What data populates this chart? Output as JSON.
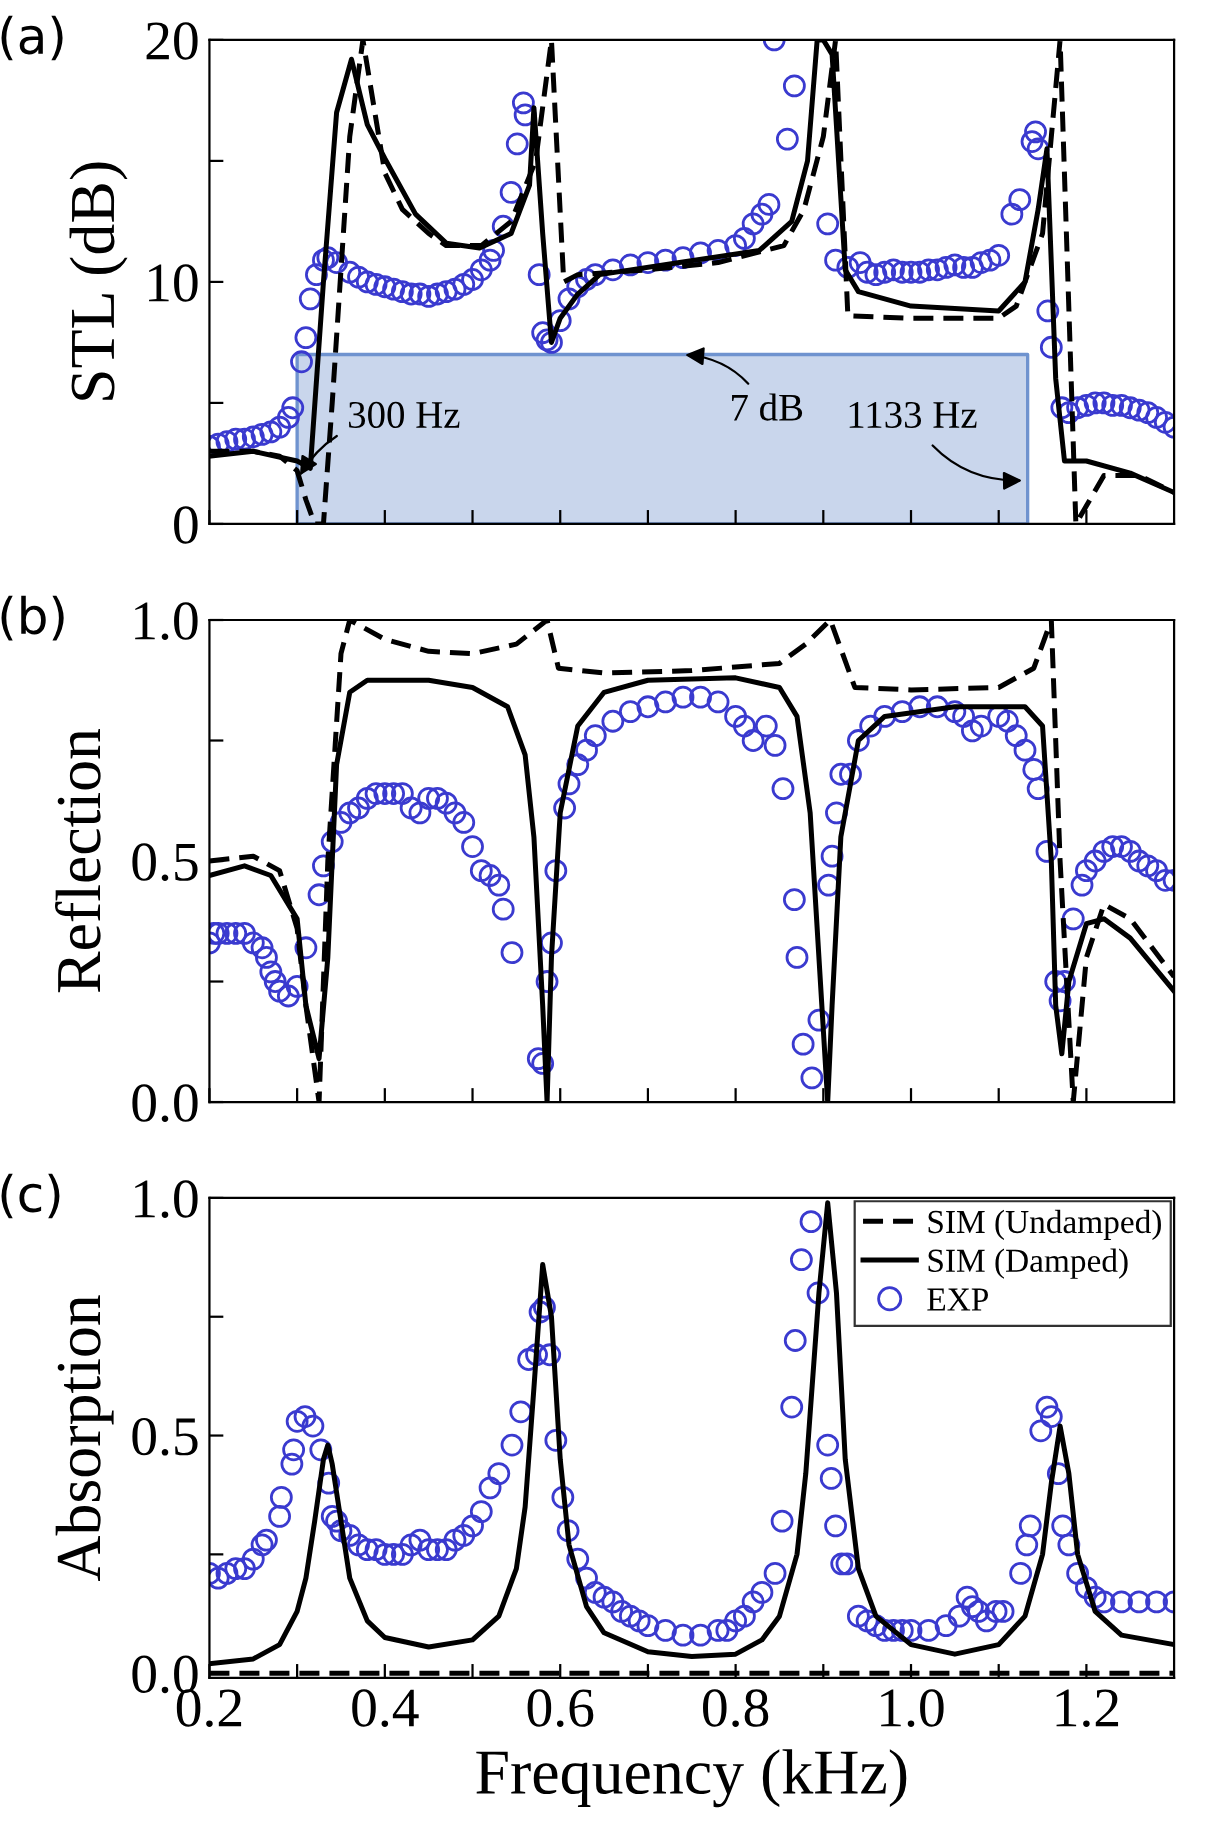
{
  "chart_data": [
    {
      "type": "line",
      "title": "(a)",
      "ylabel": "STL (dB)",
      "xlim": [
        0.2,
        1.3
      ],
      "ylim": [
        0,
        20
      ],
      "tick_labels": "y",
      "xticks": [
        0.2,
        {
          "value": 0.3,
          "label": null
        },
        0.4,
        {
          "value": 0.5,
          "label": null
        },
        0.6,
        {
          "value": 0.7,
          "label": null
        },
        0.8,
        {
          "value": 0.9,
          "label": null
        },
        1.0,
        {
          "value": 1.1,
          "label": null
        },
        1.2
      ],
      "yticks": [
        0,
        {
          "value": 5,
          "label": null
        },
        10,
        {
          "value": 15,
          "label": null
        },
        20
      ],
      "series": [
        {
          "type": "area",
          "color": "#c9d6ec",
          "x": [
            0.3,
            1.133
          ],
          "values": [
            7,
            7
          ]
        },
        {
          "type": "line",
          "color": "#000000",
          "line_style": "dashed",
          "x": [
            0.2,
            0.25,
            0.28,
            0.3,
            0.31,
            0.32,
            0.33,
            0.34,
            0.36,
            0.375,
            0.4,
            0.42,
            0.45,
            0.47,
            0.51,
            0.544,
            0.572,
            0.59,
            0.604,
            0.62,
            0.7,
            0.78,
            0.855,
            0.878,
            0.9,
            0.914,
            0.928,
            1.0,
            1.1,
            1.12,
            1.15,
            1.17,
            1.188,
            1.22,
            1.26,
            1.3
          ],
          "values": [
            3.0,
            3.0,
            2.8,
            2.2,
            1.0,
            0.0,
            0.0,
            5.0,
            16.0,
            20.0,
            14.5,
            13.0,
            12.0,
            11.5,
            11.5,
            12.5,
            15.0,
            20.0,
            10.0,
            10.3,
            10.5,
            10.8,
            11.5,
            13.0,
            16.0,
            20.0,
            8.6,
            8.5,
            8.5,
            9.0,
            12.0,
            20.0,
            0.0,
            2.0,
            2.0,
            1.3
          ]
        },
        {
          "type": "line",
          "color": "#000000",
          "line_style": "solid",
          "x": [
            0.2,
            0.25,
            0.3,
            0.315,
            0.33,
            0.345,
            0.362,
            0.38,
            0.4,
            0.435,
            0.47,
            0.508,
            0.544,
            0.565,
            0.57,
            0.58,
            0.59,
            0.6,
            0.62,
            0.645,
            0.736,
            0.827,
            0.864,
            0.882,
            0.893,
            0.9,
            0.91,
            0.925,
            0.94,
            1.0,
            1.1,
            1.13,
            1.145,
            1.155,
            1.165,
            1.175,
            1.2,
            1.25,
            1.3
          ],
          "values": [
            2.8,
            3.0,
            2.6,
            2.3,
            10.0,
            17.0,
            19.2,
            16.5,
            15.1,
            12.8,
            11.6,
            11.4,
            12.0,
            14.0,
            17.2,
            12.0,
            7.5,
            8.5,
            9.5,
            10.3,
            10.8,
            11.3,
            12.5,
            15.0,
            20.0,
            20.0,
            19.4,
            10.5,
            9.6,
            9.0,
            8.8,
            10.0,
            13.0,
            15.5,
            6.0,
            2.6,
            2.6,
            2.1,
            1.3
          ]
        },
        {
          "type": "scatter",
          "color": "#3a3acf",
          "marker": "circle",
          "x": [
            0.2,
            0.21,
            0.22,
            0.23,
            0.24,
            0.25,
            0.26,
            0.27,
            0.28,
            0.29,
            0.295,
            0.305,
            0.31,
            0.315,
            0.322,
            0.33,
            0.335,
            0.345,
            0.36,
            0.37,
            0.38,
            0.39,
            0.4,
            0.41,
            0.42,
            0.43,
            0.44,
            0.45,
            0.46,
            0.47,
            0.48,
            0.49,
            0.5,
            0.51,
            0.52,
            0.524,
            0.535,
            0.544,
            0.551,
            0.558,
            0.56,
            0.576,
            0.58,
            0.585,
            0.59,
            0.6,
            0.61,
            0.62,
            0.63,
            0.64,
            0.66,
            0.68,
            0.7,
            0.72,
            0.74,
            0.76,
            0.78,
            0.8,
            0.81,
            0.82,
            0.83,
            0.838,
            0.844,
            0.859,
            0.867,
            0.905,
            0.914,
            0.928,
            0.942,
            0.95,
            0.96,
            0.97,
            0.98,
            0.99,
            1.0,
            1.01,
            1.02,
            1.03,
            1.04,
            1.05,
            1.06,
            1.07,
            1.08,
            1.09,
            1.1,
            1.115,
            1.124,
            1.138,
            1.142,
            1.145,
            1.156,
            1.16,
            1.172,
            1.18,
            1.19,
            1.2,
            1.21,
            1.22,
            1.23,
            1.24,
            1.25,
            1.26,
            1.27,
            1.28,
            1.29,
            1.3
          ],
          "values": [
            3.2,
            3.3,
            3.4,
            3.5,
            3.5,
            3.6,
            3.7,
            3.8,
            4.0,
            4.4,
            4.8,
            6.7,
            7.7,
            9.3,
            10.3,
            10.9,
            11.0,
            10.8,
            10.4,
            10.2,
            10.0,
            9.9,
            9.8,
            9.7,
            9.6,
            9.5,
            9.5,
            9.4,
            9.5,
            9.6,
            9.7,
            9.9,
            10.1,
            10.5,
            10.9,
            11.3,
            12.3,
            13.7,
            15.7,
            17.4,
            16.9,
            10.3,
            7.9,
            7.6,
            7.5,
            8.4,
            9.3,
            9.8,
            10.1,
            10.3,
            10.5,
            10.7,
            10.8,
            10.9,
            11.0,
            11.2,
            11.3,
            11.5,
            11.8,
            12.4,
            12.8,
            13.2,
            20.0,
            15.9,
            18.1,
            12.4,
            10.9,
            10.6,
            10.8,
            10.4,
            10.3,
            10.4,
            10.5,
            10.4,
            10.4,
            10.4,
            10.5,
            10.5,
            10.6,
            10.7,
            10.6,
            10.6,
            10.8,
            10.9,
            11.1,
            12.8,
            13.4,
            15.8,
            16.2,
            15.5,
            8.8,
            7.3,
            4.8,
            4.6,
            4.8,
            4.9,
            5.0,
            5.0,
            4.9,
            4.9,
            4.8,
            4.7,
            4.6,
            4.4,
            4.2,
            4.0
          ]
        }
      ],
      "annotations": [
        {
          "text": "300 Hz",
          "x": 0.3,
          "y": 1.8
        },
        {
          "text": "7 dB",
          "x": 0.736,
          "y": 7
        },
        {
          "text": "1133 Hz",
          "x": 1.133,
          "y": 1.8
        }
      ]
    },
    {
      "type": "line",
      "title": "(b)",
      "ylabel": "Reflection",
      "xlim": [
        0.2,
        1.3
      ],
      "ylim": [
        0,
        1
      ],
      "tick_labels": "y",
      "xticks": [
        0.2,
        {
          "value": 0.3,
          "label": null
        },
        0.4,
        {
          "value": 0.5,
          "label": null
        },
        0.6,
        {
          "value": 0.7,
          "label": null
        },
        0.8,
        {
          "value": 0.9,
          "label": null
        },
        1.0,
        {
          "value": 1.1,
          "label": null
        },
        1.2
      ],
      "yticks": [
        {
          "value": 0,
          "label": "0.0"
        },
        {
          "value": 0.25,
          "label": null
        },
        0.5,
        {
          "value": 0.75,
          "label": null
        },
        {
          "value": 1,
          "label": "1.0"
        }
      ],
      "series": [
        {
          "type": "line",
          "color": "#000000",
          "line_style": "dashed",
          "x": [
            0.2,
            0.25,
            0.28,
            0.3,
            0.31,
            0.325,
            0.335,
            0.35,
            0.36,
            0.4,
            0.45,
            0.5,
            0.55,
            0.585,
            0.598,
            0.65,
            0.75,
            0.85,
            0.88,
            0.908,
            0.936,
            1.0,
            1.1,
            1.14,
            1.16,
            1.17,
            1.185,
            1.2,
            1.22,
            1.25,
            1.3
          ],
          "values": [
            0.5,
            0.51,
            0.48,
            0.36,
            0.2,
            0.0,
            0.5,
            0.93,
            1.0,
            0.96,
            0.935,
            0.93,
            0.95,
            1.0,
            0.9,
            0.89,
            0.895,
            0.91,
            0.95,
            1.0,
            0.86,
            0.855,
            0.86,
            0.9,
            1.0,
            0.5,
            0.0,
            0.3,
            0.41,
            0.38,
            0.26
          ]
        },
        {
          "type": "line",
          "color": "#000000",
          "line_style": "solid",
          "x": [
            0.2,
            0.24,
            0.27,
            0.3,
            0.31,
            0.325,
            0.335,
            0.345,
            0.36,
            0.38,
            0.45,
            0.5,
            0.54,
            0.56,
            0.57,
            0.58,
            0.585,
            0.59,
            0.6,
            0.62,
            0.65,
            0.7,
            0.8,
            0.85,
            0.87,
            0.885,
            0.9,
            0.905,
            0.91,
            0.92,
            0.94,
            0.97,
            1.05,
            1.13,
            1.15,
            1.16,
            1.165,
            1.172,
            1.18,
            1.2,
            1.22,
            1.25,
            1.3
          ],
          "values": [
            0.47,
            0.49,
            0.47,
            0.38,
            0.2,
            0.09,
            0.3,
            0.7,
            0.85,
            0.875,
            0.875,
            0.86,
            0.82,
            0.72,
            0.55,
            0.2,
            0.0,
            0.3,
            0.6,
            0.78,
            0.85,
            0.875,
            0.88,
            0.86,
            0.8,
            0.6,
            0.15,
            0.0,
            0.2,
            0.55,
            0.75,
            0.8,
            0.82,
            0.82,
            0.78,
            0.5,
            0.2,
            0.1,
            0.25,
            0.37,
            0.38,
            0.34,
            0.23
          ]
        },
        {
          "type": "scatter",
          "color": "#3a3acf",
          "marker": "circle",
          "x": [
            0.2,
            0.205,
            0.21,
            0.22,
            0.23,
            0.24,
            0.25,
            0.26,
            0.265,
            0.27,
            0.275,
            0.28,
            0.29,
            0.3,
            0.31,
            0.325,
            0.33,
            0.34,
            0.35,
            0.36,
            0.37,
            0.38,
            0.39,
            0.4,
            0.41,
            0.42,
            0.43,
            0.44,
            0.45,
            0.46,
            0.47,
            0.48,
            0.49,
            0.5,
            0.51,
            0.52,
            0.53,
            0.535,
            0.545,
            0.575,
            0.58,
            0.585,
            0.59,
            0.595,
            0.605,
            0.61,
            0.62,
            0.63,
            0.64,
            0.66,
            0.68,
            0.7,
            0.72,
            0.74,
            0.76,
            0.78,
            0.8,
            0.81,
            0.82,
            0.835,
            0.845,
            0.854,
            0.867,
            0.87,
            0.877,
            0.887,
            0.895,
            0.906,
            0.91,
            0.915,
            0.92,
            0.931,
            0.94,
            0.954,
            0.97,
            0.99,
            1.01,
            1.03,
            1.05,
            1.06,
            1.07,
            1.08,
            1.1,
            1.11,
            1.12,
            1.13,
            1.14,
            1.145,
            1.155,
            1.165,
            1.17,
            1.175,
            1.185,
            1.195,
            1.2,
            1.21,
            1.22,
            1.23,
            1.24,
            1.25,
            1.26,
            1.27,
            1.28,
            1.29,
            1.3
          ],
          "values": [
            0.33,
            0.35,
            0.35,
            0.35,
            0.35,
            0.35,
            0.33,
            0.32,
            0.3,
            0.27,
            0.25,
            0.23,
            0.22,
            0.24,
            0.32,
            0.43,
            0.49,
            0.54,
            0.58,
            0.6,
            0.61,
            0.63,
            0.64,
            0.64,
            0.64,
            0.64,
            0.61,
            0.6,
            0.63,
            0.63,
            0.62,
            0.6,
            0.58,
            0.53,
            0.48,
            0.47,
            0.45,
            0.4,
            0.31,
            0.09,
            0.08,
            0.25,
            0.33,
            0.48,
            0.61,
            0.66,
            0.7,
            0.73,
            0.76,
            0.79,
            0.81,
            0.82,
            0.83,
            0.84,
            0.84,
            0.83,
            0.8,
            0.78,
            0.75,
            0.78,
            0.74,
            0.65,
            0.42,
            0.3,
            0.12,
            0.05,
            0.17,
            0.45,
            0.51,
            0.6,
            0.68,
            0.68,
            0.75,
            0.78,
            0.8,
            0.81,
            0.82,
            0.82,
            0.81,
            0.8,
            0.77,
            0.78,
            0.8,
            0.79,
            0.76,
            0.73,
            0.69,
            0.65,
            0.52,
            0.25,
            0.21,
            0.25,
            0.38,
            0.45,
            0.48,
            0.5,
            0.52,
            0.53,
            0.53,
            0.52,
            0.5,
            0.49,
            0.48,
            0.46,
            0.46
          ]
        }
      ]
    },
    {
      "type": "line",
      "title": "(c)",
      "ylabel": "Absorption",
      "xlabel": "Frequency (kHz)",
      "xlim": [
        0.2,
        1.3
      ],
      "ylim": [
        -0.01,
        1
      ],
      "legend": "top right",
      "xticks": [
        0.2,
        {
          "value": 0.3,
          "label": null
        },
        0.4,
        {
          "value": 0.5,
          "label": null
        },
        0.6,
        {
          "value": 0.7,
          "label": null
        },
        0.8,
        {
          "value": 0.9,
          "label": null
        },
        {
          "value": 1.0,
          "label": "1.0"
        },
        {
          "value": 1.1,
          "label": null
        },
        1.2
      ],
      "yticks": [
        {
          "value": 0,
          "label": "0.0"
        },
        {
          "value": 0.25,
          "label": null
        },
        0.5,
        {
          "value": 0.75,
          "label": null
        },
        {
          "value": 1,
          "label": "1.0"
        }
      ],
      "series": [
        {
          "type": "line",
          "name": "SIM (Undamped)",
          "color": "#000000",
          "line_style": "dashed",
          "x": [
            0.2,
            1.3
          ],
          "values": [
            0,
            0
          ]
        },
        {
          "type": "line",
          "name": "SIM (Damped)",
          "color": "#000000",
          "line_style": "solid",
          "x": [
            0.2,
            0.25,
            0.28,
            0.3,
            0.31,
            0.32,
            0.33,
            0.335,
            0.34,
            0.35,
            0.36,
            0.38,
            0.4,
            0.45,
            0.5,
            0.53,
            0.55,
            0.56,
            0.57,
            0.58,
            0.59,
            0.6,
            0.61,
            0.63,
            0.65,
            0.7,
            0.75,
            0.8,
            0.83,
            0.85,
            0.87,
            0.88,
            0.895,
            0.905,
            0.915,
            0.925,
            0.94,
            0.96,
            1.0,
            1.05,
            1.1,
            1.13,
            1.15,
            1.16,
            1.17,
            1.18,
            1.19,
            1.21,
            1.24,
            1.3
          ],
          "values": [
            0.02,
            0.03,
            0.06,
            0.13,
            0.2,
            0.32,
            0.45,
            0.48,
            0.44,
            0.32,
            0.2,
            0.11,
            0.075,
            0.055,
            0.07,
            0.12,
            0.22,
            0.35,
            0.6,
            0.86,
            0.75,
            0.45,
            0.27,
            0.14,
            0.085,
            0.045,
            0.035,
            0.04,
            0.07,
            0.12,
            0.25,
            0.42,
            0.8,
            0.99,
            0.8,
            0.45,
            0.22,
            0.12,
            0.06,
            0.04,
            0.06,
            0.12,
            0.25,
            0.4,
            0.52,
            0.42,
            0.25,
            0.13,
            0.08,
            0.06
          ]
        },
        {
          "type": "scatter",
          "name": "EXP",
          "color": "#3a3acf",
          "marker": "circle",
          "x": [
            0.2,
            0.21,
            0.22,
            0.23,
            0.24,
            0.25,
            0.26,
            0.265,
            0.28,
            0.282,
            0.294,
            0.296,
            0.3,
            0.309,
            0.318,
            0.327,
            0.336,
            0.34,
            0.345,
            0.35,
            0.36,
            0.37,
            0.38,
            0.39,
            0.4,
            0.41,
            0.42,
            0.43,
            0.44,
            0.45,
            0.46,
            0.47,
            0.48,
            0.49,
            0.5,
            0.51,
            0.52,
            0.53,
            0.545,
            0.555,
            0.564,
            0.573,
            0.577,
            0.582,
            0.588,
            0.595,
            0.603,
            0.609,
            0.62,
            0.63,
            0.64,
            0.65,
            0.66,
            0.67,
            0.68,
            0.69,
            0.7,
            0.72,
            0.74,
            0.76,
            0.78,
            0.79,
            0.8,
            0.81,
            0.82,
            0.83,
            0.845,
            0.853,
            0.864,
            0.868,
            0.875,
            0.886,
            0.894,
            0.905,
            0.909,
            0.914,
            0.921,
            0.927,
            0.94,
            0.95,
            0.96,
            0.97,
            0.98,
            0.99,
            1.0,
            1.02,
            1.04,
            1.055,
            1.064,
            1.07,
            1.077,
            1.086,
            1.097,
            1.105,
            1.125,
            1.132,
            1.136,
            1.148,
            1.155,
            1.16,
            1.168,
            1.173,
            1.18,
            1.19,
            1.2,
            1.21,
            1.22,
            1.24,
            1.26,
            1.28,
            1.3
          ],
          "values": [
            0.21,
            0.2,
            0.21,
            0.22,
            0.22,
            0.24,
            0.27,
            0.28,
            0.33,
            0.37,
            0.44,
            0.47,
            0.53,
            0.54,
            0.52,
            0.47,
            0.4,
            0.33,
            0.32,
            0.3,
            0.29,
            0.27,
            0.26,
            0.26,
            0.25,
            0.25,
            0.25,
            0.27,
            0.28,
            0.26,
            0.26,
            0.26,
            0.28,
            0.29,
            0.31,
            0.34,
            0.39,
            0.42,
            0.48,
            0.55,
            0.66,
            0.67,
            0.76,
            0.77,
            0.67,
            0.49,
            0.37,
            0.3,
            0.24,
            0.2,
            0.17,
            0.16,
            0.15,
            0.13,
            0.12,
            0.11,
            0.1,
            0.09,
            0.08,
            0.08,
            0.09,
            0.09,
            0.11,
            0.12,
            0.15,
            0.17,
            0.21,
            0.32,
            0.56,
            0.7,
            0.87,
            0.95,
            0.8,
            0.48,
            0.41,
            0.31,
            0.23,
            0.23,
            0.12,
            0.11,
            0.1,
            0.09,
            0.09,
            0.09,
            0.09,
            0.09,
            0.1,
            0.12,
            0.16,
            0.14,
            0.13,
            0.11,
            0.13,
            0.13,
            0.21,
            0.27,
            0.31,
            0.51,
            0.56,
            0.54,
            0.42,
            0.31,
            0.27,
            0.21,
            0.18,
            0.16,
            0.15,
            0.15,
            0.15,
            0.15,
            0.15
          ]
        }
      ]
    }
  ]
}
